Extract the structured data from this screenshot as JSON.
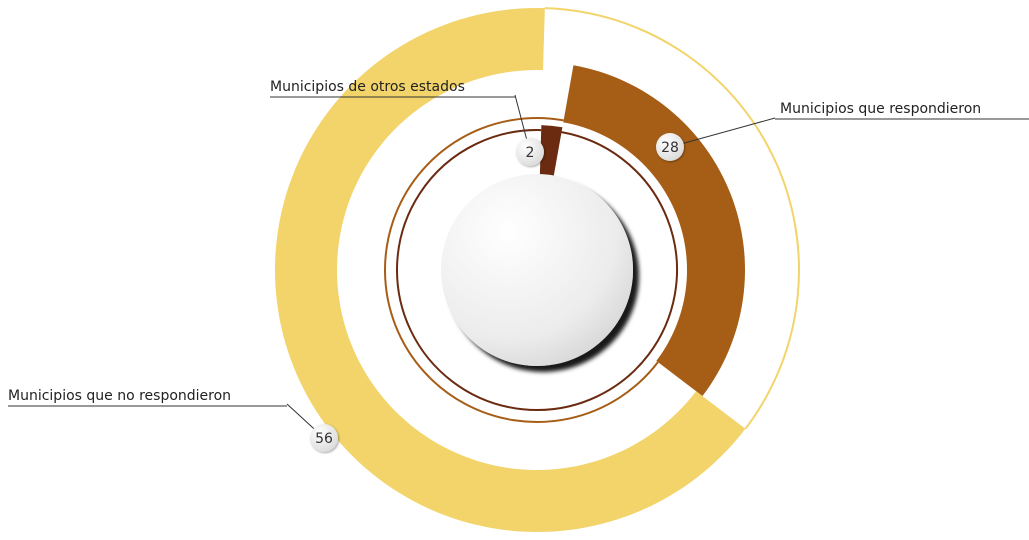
{
  "chart_data": {
    "type": "pie",
    "categories": [
      "Municipios de otros estados",
      "Municipios que respondieron",
      "Municipios que no respondieron"
    ],
    "values": [
      2,
      28,
      56
    ],
    "colors": [
      "#6b2b10",
      "#a65e17",
      "#f2d46a"
    ]
  }
}
